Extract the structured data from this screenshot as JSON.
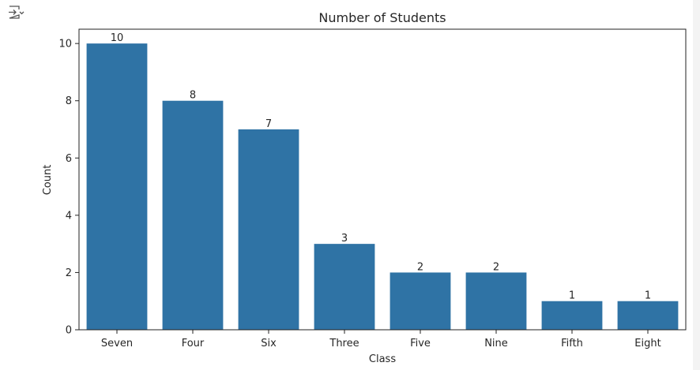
{
  "output_icon": "output-toggle-icon",
  "chart_data": {
    "type": "bar",
    "title": "Number of Students",
    "xlabel": "Class",
    "ylabel": "Count",
    "categories": [
      "Seven",
      "Four",
      "Six",
      "Three",
      "Five",
      "Nine",
      "Fifth",
      "Eight"
    ],
    "values": [
      10,
      8,
      7,
      3,
      2,
      2,
      1,
      1
    ],
    "data_labels": [
      "10",
      "8",
      "7",
      "3",
      "2",
      "2",
      "1",
      "1"
    ],
    "ylim": [
      0,
      10.5
    ],
    "yticks": [
      "0",
      "2",
      "4",
      "6",
      "8",
      "10"
    ],
    "bar_color": "#2f73a5",
    "grid": false,
    "legend": false
  }
}
